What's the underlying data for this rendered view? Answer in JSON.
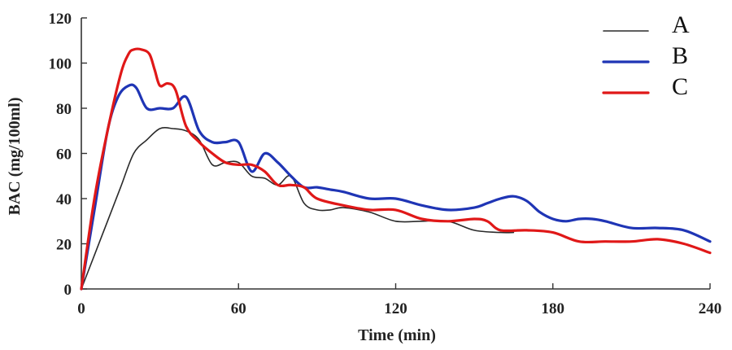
{
  "chart_data": {
    "type": "line",
    "xlabel": "Time (min)",
    "ylabel": "BAC (mg/100ml)",
    "xlim": [
      0,
      240
    ],
    "ylim": [
      0,
      120
    ],
    "xticks": [
      0,
      60,
      120,
      180,
      240
    ],
    "yticks": [
      0,
      20,
      40,
      60,
      80,
      100,
      120
    ],
    "grid": false,
    "legend_position": "top-right",
    "series": [
      {
        "name": "A",
        "color": "#2a2a2a",
        "x": [
          0,
          5,
          10,
          15,
          20,
          25,
          30,
          35,
          40,
          45,
          50,
          55,
          60,
          65,
          70,
          75,
          80,
          85,
          90,
          95,
          100,
          110,
          120,
          130,
          140,
          150,
          160,
          165
        ],
        "y": [
          0,
          15,
          30,
          45,
          60,
          66,
          71,
          71,
          70,
          66,
          55,
          56,
          56,
          50,
          49,
          46,
          50,
          38,
          35,
          35,
          36,
          34,
          30,
          30,
          30,
          26,
          25,
          25
        ]
      },
      {
        "name": "B",
        "color": "#1f35b5",
        "x": [
          0,
          5,
          10,
          14,
          18,
          21,
          25,
          30,
          35,
          40,
          45,
          50,
          55,
          60,
          65,
          70,
          75,
          80,
          85,
          90,
          95,
          100,
          110,
          120,
          130,
          140,
          150,
          155,
          160,
          165,
          170,
          175,
          180,
          185,
          190,
          195,
          200,
          210,
          220,
          230,
          240
        ],
        "y": [
          0,
          35,
          70,
          85,
          90,
          89,
          80,
          80,
          80,
          85,
          70,
          65,
          65,
          65,
          52,
          60,
          56,
          50,
          45,
          45,
          44,
          43,
          40,
          40,
          37,
          35,
          36,
          38,
          40,
          41,
          39,
          34,
          31,
          30,
          31,
          31,
          30,
          27,
          27,
          26,
          21
        ]
      },
      {
        "name": "C",
        "color": "#e01818",
        "x": [
          0,
          5,
          10,
          15,
          18,
          20,
          23,
          26,
          28,
          30,
          33,
          36,
          40,
          45,
          50,
          55,
          60,
          65,
          70,
          75,
          80,
          85,
          90,
          100,
          110,
          120,
          130,
          140,
          150,
          155,
          160,
          170,
          180,
          190,
          200,
          210,
          220,
          230,
          240
        ],
        "y": [
          0,
          40,
          70,
          95,
          104,
          106,
          106,
          104,
          97,
          90,
          91,
          88,
          72,
          65,
          60,
          56,
          55,
          55,
          52,
          46,
          46,
          45,
          40,
          37,
          35,
          35,
          31,
          30,
          31,
          30,
          26,
          26,
          25,
          21,
          21,
          21,
          22,
          20,
          16
        ]
      }
    ]
  }
}
